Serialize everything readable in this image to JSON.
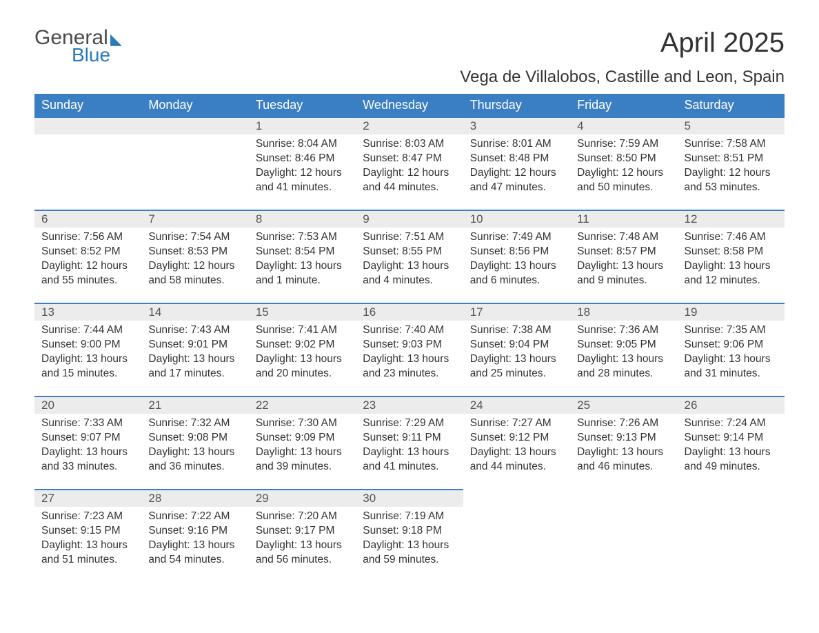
{
  "logo": {
    "word1": "General",
    "word2": "Blue"
  },
  "title": "April 2025",
  "subtitle": "Vega de Villalobos, Castille and Leon, Spain",
  "colors": {
    "header_bg": "#3a7fc4",
    "header_text": "#ffffff",
    "daynum_bg": "#ececec",
    "border_top": "#3a7fc4",
    "body_text": "#333333",
    "logo_gray": "#4a4a4a",
    "logo_blue": "#2a79bd",
    "page_bg": "#ffffff"
  },
  "typography": {
    "title_fontsize": 40,
    "subtitle_fontsize": 24,
    "weekday_fontsize": 18,
    "daynum_fontsize": 17,
    "detail_fontsize": 15.5
  },
  "weekdays": [
    "Sunday",
    "Monday",
    "Tuesday",
    "Wednesday",
    "Thursday",
    "Friday",
    "Saturday"
  ],
  "weeks": [
    [
      {
        "empty": true
      },
      {
        "empty": true
      },
      {
        "day": "1",
        "sunrise": "Sunrise: 8:04 AM",
        "sunset": "Sunset: 8:46 PM",
        "daylight": "Daylight: 12 hours and 41 minutes."
      },
      {
        "day": "2",
        "sunrise": "Sunrise: 8:03 AM",
        "sunset": "Sunset: 8:47 PM",
        "daylight": "Daylight: 12 hours and 44 minutes."
      },
      {
        "day": "3",
        "sunrise": "Sunrise: 8:01 AM",
        "sunset": "Sunset: 8:48 PM",
        "daylight": "Daylight: 12 hours and 47 minutes."
      },
      {
        "day": "4",
        "sunrise": "Sunrise: 7:59 AM",
        "sunset": "Sunset: 8:50 PM",
        "daylight": "Daylight: 12 hours and 50 minutes."
      },
      {
        "day": "5",
        "sunrise": "Sunrise: 7:58 AM",
        "sunset": "Sunset: 8:51 PM",
        "daylight": "Daylight: 12 hours and 53 minutes."
      }
    ],
    [
      {
        "day": "6",
        "sunrise": "Sunrise: 7:56 AM",
        "sunset": "Sunset: 8:52 PM",
        "daylight": "Daylight: 12 hours and 55 minutes."
      },
      {
        "day": "7",
        "sunrise": "Sunrise: 7:54 AM",
        "sunset": "Sunset: 8:53 PM",
        "daylight": "Daylight: 12 hours and 58 minutes."
      },
      {
        "day": "8",
        "sunrise": "Sunrise: 7:53 AM",
        "sunset": "Sunset: 8:54 PM",
        "daylight": "Daylight: 13 hours and 1 minute."
      },
      {
        "day": "9",
        "sunrise": "Sunrise: 7:51 AM",
        "sunset": "Sunset: 8:55 PM",
        "daylight": "Daylight: 13 hours and 4 minutes."
      },
      {
        "day": "10",
        "sunrise": "Sunrise: 7:49 AM",
        "sunset": "Sunset: 8:56 PM",
        "daylight": "Daylight: 13 hours and 6 minutes."
      },
      {
        "day": "11",
        "sunrise": "Sunrise: 7:48 AM",
        "sunset": "Sunset: 8:57 PM",
        "daylight": "Daylight: 13 hours and 9 minutes."
      },
      {
        "day": "12",
        "sunrise": "Sunrise: 7:46 AM",
        "sunset": "Sunset: 8:58 PM",
        "daylight": "Daylight: 13 hours and 12 minutes."
      }
    ],
    [
      {
        "day": "13",
        "sunrise": "Sunrise: 7:44 AM",
        "sunset": "Sunset: 9:00 PM",
        "daylight": "Daylight: 13 hours and 15 minutes."
      },
      {
        "day": "14",
        "sunrise": "Sunrise: 7:43 AM",
        "sunset": "Sunset: 9:01 PM",
        "daylight": "Daylight: 13 hours and 17 minutes."
      },
      {
        "day": "15",
        "sunrise": "Sunrise: 7:41 AM",
        "sunset": "Sunset: 9:02 PM",
        "daylight": "Daylight: 13 hours and 20 minutes."
      },
      {
        "day": "16",
        "sunrise": "Sunrise: 7:40 AM",
        "sunset": "Sunset: 9:03 PM",
        "daylight": "Daylight: 13 hours and 23 minutes."
      },
      {
        "day": "17",
        "sunrise": "Sunrise: 7:38 AM",
        "sunset": "Sunset: 9:04 PM",
        "daylight": "Daylight: 13 hours and 25 minutes."
      },
      {
        "day": "18",
        "sunrise": "Sunrise: 7:36 AM",
        "sunset": "Sunset: 9:05 PM",
        "daylight": "Daylight: 13 hours and 28 minutes."
      },
      {
        "day": "19",
        "sunrise": "Sunrise: 7:35 AM",
        "sunset": "Sunset: 9:06 PM",
        "daylight": "Daylight: 13 hours and 31 minutes."
      }
    ],
    [
      {
        "day": "20",
        "sunrise": "Sunrise: 7:33 AM",
        "sunset": "Sunset: 9:07 PM",
        "daylight": "Daylight: 13 hours and 33 minutes."
      },
      {
        "day": "21",
        "sunrise": "Sunrise: 7:32 AM",
        "sunset": "Sunset: 9:08 PM",
        "daylight": "Daylight: 13 hours and 36 minutes."
      },
      {
        "day": "22",
        "sunrise": "Sunrise: 7:30 AM",
        "sunset": "Sunset: 9:09 PM",
        "daylight": "Daylight: 13 hours and 39 minutes."
      },
      {
        "day": "23",
        "sunrise": "Sunrise: 7:29 AM",
        "sunset": "Sunset: 9:11 PM",
        "daylight": "Daylight: 13 hours and 41 minutes."
      },
      {
        "day": "24",
        "sunrise": "Sunrise: 7:27 AM",
        "sunset": "Sunset: 9:12 PM",
        "daylight": "Daylight: 13 hours and 44 minutes."
      },
      {
        "day": "25",
        "sunrise": "Sunrise: 7:26 AM",
        "sunset": "Sunset: 9:13 PM",
        "daylight": "Daylight: 13 hours and 46 minutes."
      },
      {
        "day": "26",
        "sunrise": "Sunrise: 7:24 AM",
        "sunset": "Sunset: 9:14 PM",
        "daylight": "Daylight: 13 hours and 49 minutes."
      }
    ],
    [
      {
        "day": "27",
        "sunrise": "Sunrise: 7:23 AM",
        "sunset": "Sunset: 9:15 PM",
        "daylight": "Daylight: 13 hours and 51 minutes."
      },
      {
        "day": "28",
        "sunrise": "Sunrise: 7:22 AM",
        "sunset": "Sunset: 9:16 PM",
        "daylight": "Daylight: 13 hours and 54 minutes."
      },
      {
        "day": "29",
        "sunrise": "Sunrise: 7:20 AM",
        "sunset": "Sunset: 9:17 PM",
        "daylight": "Daylight: 13 hours and 56 minutes."
      },
      {
        "day": "30",
        "sunrise": "Sunrise: 7:19 AM",
        "sunset": "Sunset: 9:18 PM",
        "daylight": "Daylight: 13 hours and 59 minutes."
      },
      {
        "empty": true
      },
      {
        "empty": true
      },
      {
        "empty": true
      }
    ]
  ]
}
